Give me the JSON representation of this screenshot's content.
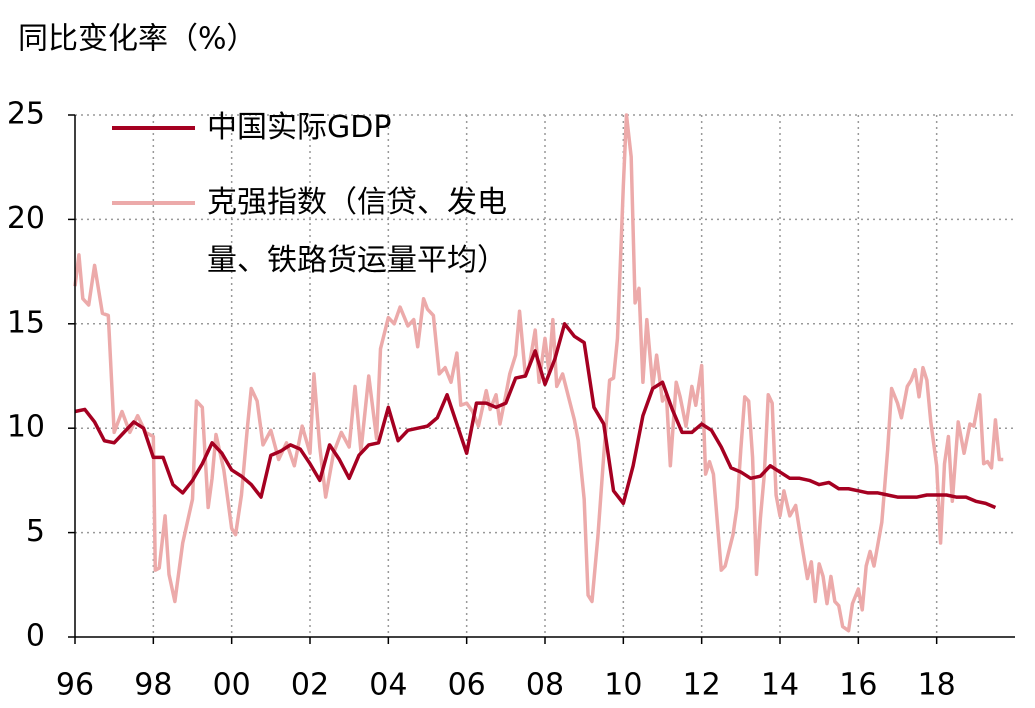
{
  "chart_data": {
    "type": "line",
    "title": "同比变化率（%）",
    "xlim": [
      1996,
      2020
    ],
    "ylim": [
      0,
      25
    ],
    "xticks": [
      {
        "value": 1996,
        "label": "96"
      },
      {
        "value": 1998,
        "label": "98"
      },
      {
        "value": 2000,
        "label": "00"
      },
      {
        "value": 2002,
        "label": "02"
      },
      {
        "value": 2004,
        "label": "04"
      },
      {
        "value": 2006,
        "label": "06"
      },
      {
        "value": 2008,
        "label": "08"
      },
      {
        "value": 2010,
        "label": "10"
      },
      {
        "value": 2012,
        "label": "12"
      },
      {
        "value": 2014,
        "label": "14"
      },
      {
        "value": 2016,
        "label": "16"
      },
      {
        "value": 2018,
        "label": "18"
      }
    ],
    "yticks": [
      0,
      5,
      10,
      15,
      20,
      25
    ],
    "grid": true,
    "legend": "upper left",
    "series": [
      {
        "name": "中国实际GDP",
        "color": "#a50021",
        "x": [
          1996,
          1996.25,
          1996.5,
          1996.75,
          1997,
          1997.25,
          1997.5,
          1997.75,
          1998,
          1998.25,
          1998.5,
          1998.75,
          1999,
          1999.25,
          1999.5,
          1999.75,
          2000,
          2000.25,
          2000.5,
          2000.75,
          2001,
          2001.25,
          2001.5,
          2001.75,
          2002,
          2002.25,
          2002.5,
          2002.75,
          2003,
          2003.25,
          2003.5,
          2003.75,
          2004,
          2004.25,
          2004.5,
          2004.75,
          2005,
          2005.25,
          2005.5,
          2005.75,
          2006,
          2006.25,
          2006.5,
          2006.75,
          2007,
          2007.25,
          2007.5,
          2007.75,
          2008,
          2008.25,
          2008.5,
          2008.75,
          2009,
          2009.25,
          2009.5,
          2009.75,
          2010,
          2010.25,
          2010.5,
          2010.75,
          2011,
          2011.25,
          2011.5,
          2011.75,
          2012,
          2012.25,
          2012.5,
          2012.75,
          2013,
          2013.25,
          2013.5,
          2013.75,
          2014,
          2014.25,
          2014.5,
          2014.75,
          2015,
          2015.25,
          2015.5,
          2015.75,
          2016,
          2016.25,
          2016.5,
          2016.75,
          2017,
          2017.25,
          2017.5,
          2017.75,
          2018,
          2018.25,
          2018.5,
          2018.75,
          2019,
          2019.25,
          2019.5
        ],
        "values": [
          10.8,
          10.9,
          10.3,
          9.4,
          9.3,
          9.8,
          10.3,
          10.0,
          8.6,
          8.6,
          7.3,
          6.9,
          7.5,
          8.3,
          9.3,
          8.8,
          8.0,
          7.7,
          7.3,
          6.7,
          8.7,
          8.9,
          9.2,
          9.0,
          8.3,
          7.5,
          9.2,
          8.5,
          7.6,
          8.7,
          9.2,
          9.3,
          11.0,
          9.4,
          9.9,
          10.0,
          10.1,
          10.5,
          11.6,
          10.2,
          8.8,
          11.2,
          11.2,
          11.0,
          11.2,
          12.4,
          12.5,
          13.7,
          12.1,
          13.3,
          15.0,
          14.4,
          14.1,
          11.0,
          10.2,
          7.0,
          6.4,
          8.2,
          10.6,
          11.9,
          12.2,
          10.9,
          9.8,
          9.8,
          10.2,
          9.9,
          9.1,
          8.1,
          7.9,
          7.6,
          7.7,
          8.2,
          7.9,
          7.6,
          7.6,
          7.5,
          7.3,
          7.4,
          7.1,
          7.1,
          7.0,
          6.9,
          6.9,
          6.8,
          6.7,
          6.7,
          6.7,
          6.8,
          6.8,
          6.8,
          6.7,
          6.7,
          6.5,
          6.4,
          6.2
        ]
      },
      {
        "name": "克强指数（信贷、发电量、铁路货运量平均）",
        "color": "#ecaaaa",
        "x": [
          1996.0,
          1996.1,
          1996.2,
          1996.35,
          1996.5,
          1996.7,
          1996.85,
          1997.0,
          1997.2,
          1997.4,
          1997.6,
          1997.8,
          1998.0,
          1998.05,
          1998.15,
          1998.3,
          1998.4,
          1998.55,
          1998.75,
          1999.0,
          1999.1,
          1999.25,
          1999.4,
          1999.5,
          1999.6,
          1999.8,
          2000.0,
          2000.1,
          2000.25,
          2000.4,
          2000.5,
          2000.65,
          2000.8,
          2001.0,
          2001.2,
          2001.4,
          2001.6,
          2001.8,
          2002.0,
          2002.1,
          2002.25,
          2002.4,
          2002.6,
          2002.8,
          2003.0,
          2003.15,
          2003.3,
          2003.5,
          2003.7,
          2003.8,
          2004.0,
          2004.15,
          2004.3,
          2004.5,
          2004.65,
          2004.75,
          2004.9,
          2005.0,
          2005.15,
          2005.3,
          2005.45,
          2005.6,
          2005.75,
          2005.85,
          2006.0,
          2006.15,
          2006.3,
          2006.5,
          2006.6,
          2006.75,
          2006.85,
          2007.0,
          2007.1,
          2007.25,
          2007.35,
          2007.5,
          2007.6,
          2007.75,
          2007.85,
          2008.0,
          2008.1,
          2008.2,
          2008.3,
          2008.45,
          2008.6,
          2008.75,
          2008.85,
          2009.0,
          2009.1,
          2009.2,
          2009.35,
          2009.5,
          2009.65,
          2009.75,
          2009.85,
          2010.0,
          2010.08,
          2010.2,
          2010.3,
          2010.4,
          2010.5,
          2010.6,
          2010.75,
          2010.85,
          2011.0,
          2011.1,
          2011.2,
          2011.35,
          2011.45,
          2011.6,
          2011.75,
          2011.85,
          2012.0,
          2012.1,
          2012.2,
          2012.3,
          2012.5,
          2012.6,
          2012.8,
          2012.9,
          2013.0,
          2013.1,
          2013.2,
          2013.3,
          2013.4,
          2013.5,
          2013.6,
          2013.7,
          2013.8,
          2013.9,
          2014.0,
          2014.1,
          2014.25,
          2014.4,
          2014.55,
          2014.7,
          2014.8,
          2014.9,
          2015.0,
          2015.1,
          2015.2,
          2015.3,
          2015.4,
          2015.5,
          2015.6,
          2015.75,
          2015.85,
          2016.0,
          2016.1,
          2016.2,
          2016.3,
          2016.4,
          2016.6,
          2016.75,
          2016.85,
          2017.0,
          2017.1,
          2017.25,
          2017.35,
          2017.45,
          2017.55,
          2017.65,
          2017.75,
          2017.85,
          2018.0,
          2018.1,
          2018.2,
          2018.3,
          2018.4,
          2018.55,
          2018.7,
          2018.85,
          2018.95,
          2019.1,
          2019.2,
          2019.3,
          2019.4,
          2019.5,
          2019.6,
          2019.7
        ],
        "values": [
          16.8,
          18.3,
          16.2,
          15.9,
          17.8,
          15.5,
          15.4,
          9.8,
          10.8,
          9.8,
          10.6,
          9.8,
          9.6,
          3.2,
          3.3,
          5.8,
          3.0,
          1.7,
          4.5,
          6.6,
          11.3,
          11.0,
          6.2,
          7.6,
          9.7,
          8.0,
          5.2,
          4.9,
          6.8,
          10.0,
          11.9,
          11.3,
          9.2,
          9.9,
          8.5,
          9.3,
          8.2,
          10.1,
          8.8,
          12.6,
          9.1,
          6.7,
          8.8,
          9.8,
          9.1,
          12.0,
          8.9,
          12.5,
          9.5,
          13.8,
          15.3,
          15.0,
          15.8,
          14.9,
          15.2,
          13.9,
          16.2,
          15.7,
          15.4,
          12.6,
          12.9,
          12.2,
          13.6,
          11.1,
          11.2,
          10.8,
          10.1,
          11.8,
          10.9,
          11.6,
          10.2,
          11.6,
          12.6,
          13.5,
          15.6,
          12.5,
          13.0,
          14.7,
          12.2,
          14.3,
          12.7,
          15.2,
          12.0,
          12.6,
          11.5,
          10.4,
          9.4,
          6.6,
          2.0,
          1.7,
          4.8,
          8.7,
          12.3,
          12.4,
          14.3,
          21.6,
          25.0,
          23.0,
          16.0,
          16.7,
          12.2,
          15.2,
          12.0,
          13.5,
          11.3,
          11.6,
          8.2,
          12.2,
          11.5,
          10.1,
          12.0,
          11.1,
          13.0,
          7.8,
          8.4,
          7.8,
          3.2,
          3.4,
          4.9,
          6.2,
          9.0,
          11.5,
          11.3,
          8.6,
          3.0,
          5.7,
          7.8,
          11.6,
          11.2,
          6.8,
          5.8,
          7.0,
          5.8,
          6.3,
          4.5,
          2.8,
          3.6,
          1.7,
          3.5,
          2.9,
          1.6,
          2.9,
          1.7,
          1.5,
          0.5,
          0.3,
          1.6,
          2.3,
          1.3,
          3.4,
          4.1,
          3.4,
          5.5,
          9.0,
          11.9,
          11.2,
          10.5,
          12.0,
          12.3,
          12.8,
          11.5,
          12.9,
          12.3,
          10.3,
          8.2,
          4.5,
          8.3,
          9.6,
          6.5,
          10.3,
          8.8,
          10.2,
          10.1,
          11.6,
          8.3,
          8.4,
          8.1,
          10.4,
          8.5,
          8.5
        ]
      }
    ]
  }
}
